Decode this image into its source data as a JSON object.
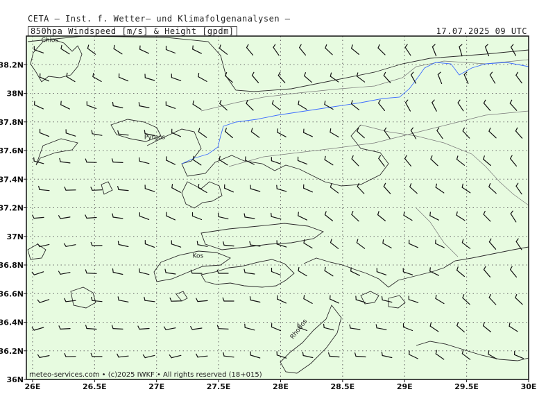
{
  "header": {
    "institute": "CETA — Inst. f. Wetter— und Klimafolgenanalysen —",
    "parameter": "850hpa_Windspeed_[m/s]_&_Height_[gpdm]",
    "valid_time": "17.07.2025 09 UTC"
  },
  "axes": {
    "x_ticks": [
      {
        "value": 26.0,
        "label": "26E"
      },
      {
        "value": 26.5,
        "label": "26.5E"
      },
      {
        "value": 27.0,
        "label": "27E"
      },
      {
        "value": 27.5,
        "label": "27.5E"
      },
      {
        "value": 28.0,
        "label": "28E"
      },
      {
        "value": 28.5,
        "label": "28.5E"
      },
      {
        "value": 29.0,
        "label": "29E"
      },
      {
        "value": 29.5,
        "label": "29.5E"
      },
      {
        "value": 30.0,
        "label": "30E"
      }
    ],
    "y_ticks": [
      {
        "value": 36.0,
        "label": "36N"
      },
      {
        "value": 36.2,
        "label": "36.2N"
      },
      {
        "value": 36.4,
        "label": "36.4N"
      },
      {
        "value": 36.6,
        "label": "36.6N"
      },
      {
        "value": 36.8,
        "label": "36.8N"
      },
      {
        "value": 37.0,
        "label": "37N"
      },
      {
        "value": 37.2,
        "label": "37.2N"
      },
      {
        "value": 37.4,
        "label": "37.4N"
      },
      {
        "value": 37.6,
        "label": "37.6N"
      },
      {
        "value": 37.8,
        "label": "37.8N"
      },
      {
        "value": 38.0,
        "label": "38N"
      },
      {
        "value": 38.2,
        "label": "38.2N"
      }
    ],
    "x_range": [
      25.95,
      30.0
    ],
    "y_range": [
      36.0,
      38.4
    ]
  },
  "places": [
    {
      "name": "Chios",
      "lon": 26.07,
      "lat": 38.36
    },
    {
      "name": "Pyrgos",
      "lon": 26.9,
      "lat": 37.68
    },
    {
      "name": "Kos",
      "lon": 27.29,
      "lat": 36.85
    },
    {
      "name": "Rhodos",
      "lon": 28.1,
      "lat": 36.28
    }
  ],
  "footer": "meteo-services.com • (c)2025 IWKF • All rights reserved (18+015)",
  "colors": {
    "land": "#e7fbe0",
    "coast": "#2a2a2a",
    "border": "#777777",
    "height_contour": "#3c6cff",
    "barb": "#111111",
    "grid": "#6a6a6a"
  }
}
